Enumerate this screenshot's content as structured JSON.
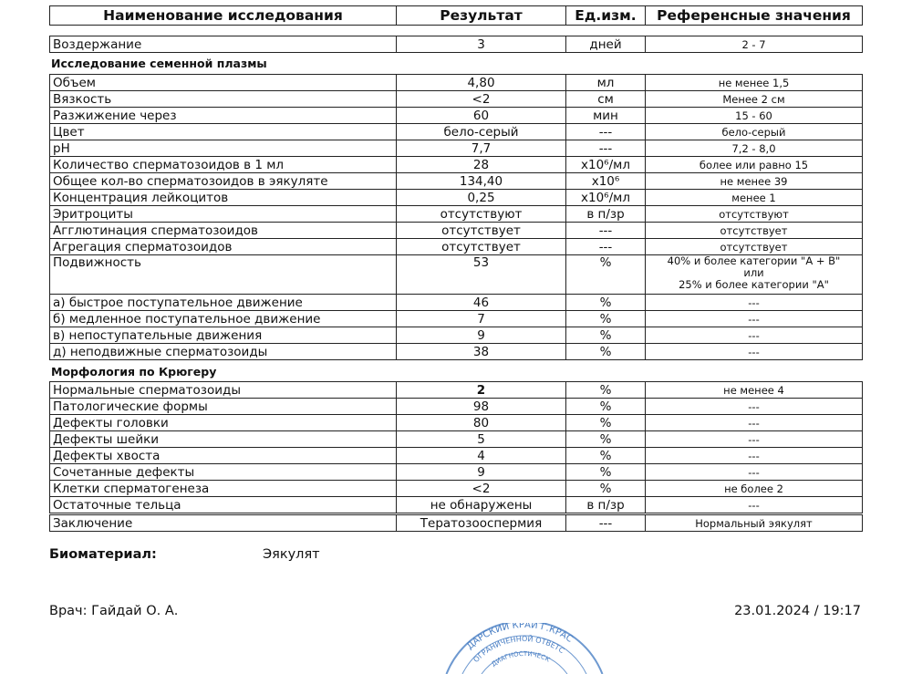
{
  "header": {
    "name": "Наименование исследования",
    "result": "Результат",
    "unit": "Ед.изм.",
    "reference": "Референсные значения"
  },
  "abstinence": {
    "name": "Воздержание",
    "result": "3",
    "unit": "дней",
    "ref": "2 - 7"
  },
  "section_plasma": "Исследование семенной плазмы",
  "plasma_rows": [
    {
      "name": "Объем",
      "result": "4,80",
      "unit": "мл",
      "ref": "не менее 1,5"
    },
    {
      "name": "Вязкость",
      "result": "<2",
      "unit": "см",
      "ref": "Менее 2 см"
    },
    {
      "name": "Разжижение через",
      "result": "60",
      "unit": "мин",
      "ref": "15 - 60"
    },
    {
      "name": "Цвет",
      "result": "бело-серый",
      "unit": "---",
      "ref": "бело-серый"
    },
    {
      "name": "pH",
      "result": "7,7",
      "unit": "---",
      "ref": "7,2 - 8,0"
    },
    {
      "name": "Количество сперматозоидов в 1 мл",
      "result": "28",
      "unit": "x10⁶/мл",
      "ref": "более или равно 15"
    },
    {
      "name": "Общее кол-во сперматозоидов в эякуляте",
      "result": "134,40",
      "unit": "x10⁶",
      "ref": "не менее 39"
    },
    {
      "name": "Концентрация лейкоцитов",
      "result": "0,25",
      "unit": "x10⁶/мл",
      "ref": "менее 1"
    },
    {
      "name": "Эритроциты",
      "result": "отсутствуют",
      "unit": "в п/зр",
      "ref": "отсутствуют"
    },
    {
      "name": "Агглютинация сперматозоидов",
      "result": "отсутствует",
      "unit": "---",
      "ref": "отсутствует"
    },
    {
      "name": "Агрегация сперматозоидов",
      "result": "отсутствует",
      "unit": "---",
      "ref": "отсутствует"
    }
  ],
  "motility": {
    "name": "Подвижность",
    "result": "53",
    "unit": "%",
    "ref_line1": "40% и более категории \"A + B\"",
    "ref_line2": "или",
    "ref_line3": "25% и более категории \"A\""
  },
  "motility_rows": [
    {
      "name": "а) быстрое поступательное движение",
      "result": "46",
      "unit": "%",
      "ref": "---"
    },
    {
      "name": "б) медленное поступательное движение",
      "result": "7",
      "unit": "%",
      "ref": "---"
    },
    {
      "name": "в) непоступательные движения",
      "result": "9",
      "unit": "%",
      "ref": "---"
    },
    {
      "name": "д) неподвижные сперматозоиды",
      "result": "38",
      "unit": "%",
      "ref": "---"
    }
  ],
  "section_morph": "Морфология по Крюгеру",
  "morph_rows": [
    {
      "name": "Нормальные сперматозоиды",
      "result": "2",
      "unit": "%",
      "ref": "не менее 4",
      "bold": true
    },
    {
      "name": "Патологические формы",
      "result": "98",
      "unit": "%",
      "ref": "---"
    },
    {
      "name": "Дефекты головки",
      "result": "80",
      "unit": "%",
      "ref": "---"
    },
    {
      "name": "Дефекты шейки",
      "result": "5",
      "unit": "%",
      "ref": "---"
    },
    {
      "name": "Дефекты хвоста",
      "result": "4",
      "unit": "%",
      "ref": "---"
    },
    {
      "name": "Сочетанные дефекты",
      "result": "9",
      "unit": "%",
      "ref": "---"
    },
    {
      "name": "Клетки сперматогенеза",
      "result": "<2",
      "unit": "%",
      "ref": "не более 2"
    },
    {
      "name": "Остаточные тельца",
      "result": "не обнаружены",
      "unit": "в п/зр",
      "ref": "---"
    }
  ],
  "conclusion": {
    "name": "Заключение",
    "result": "Тератозооспермия",
    "unit": "---",
    "ref": "Нормальный эякулят"
  },
  "biomaterial": {
    "label": "Биоматериал:",
    "value": "Эякулят"
  },
  "doctor": "Врач: Гайдай О. А.",
  "datetime": "23.01.2024 / 19:17",
  "stamp": {
    "text_outer": "…ДАРСКИЙ КРАЙ Г.КРАС…",
    "text_inner": "…ОГРАНИЧЕННОЙ ОТВЕТС…",
    "text_core": "…ДИАГНОСТИЧЕСК…",
    "color": "#4a7fc4"
  }
}
